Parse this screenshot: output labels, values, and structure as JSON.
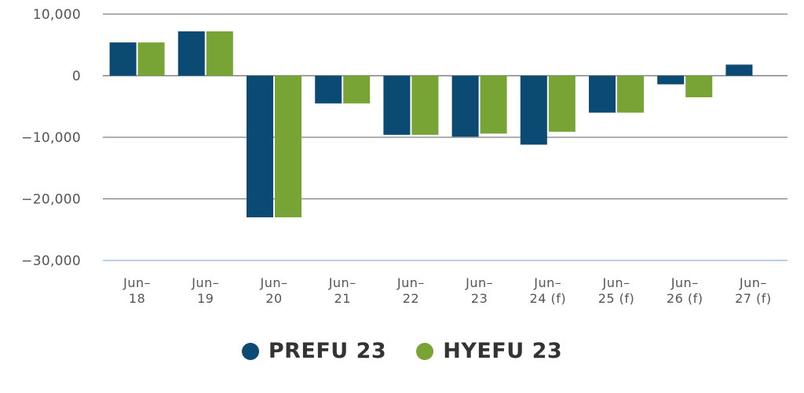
{
  "chart_data": {
    "type": "bar",
    "categories": [
      [
        "Jun–",
        "18"
      ],
      [
        "Jun–",
        "19"
      ],
      [
        "Jun–",
        "20"
      ],
      [
        "Jun–",
        "21"
      ],
      [
        "Jun–",
        "22"
      ],
      [
        "Jun–",
        "23"
      ],
      [
        "Jun–",
        "24 (f)"
      ],
      [
        "Jun–",
        "25 (f)"
      ],
      [
        "Jun–",
        "26 (f)"
      ],
      [
        "Jun–",
        "27 (f)"
      ]
    ],
    "series": [
      {
        "name": "PREFU 23",
        "color": "#0a4a73",
        "values": [
          5400,
          7200,
          -23000,
          -4500,
          -9600,
          -9900,
          -11200,
          -6000,
          -1400,
          1800
        ]
      },
      {
        "name": "HYEFU 23",
        "color": "#77a434",
        "values": [
          5400,
          7200,
          -23000,
          -4500,
          -9600,
          -9400,
          -9100,
          -6000,
          -3500,
          null
        ]
      }
    ],
    "ylim": [
      -30000,
      10000
    ],
    "yticks": [
      10000,
      0,
      -10000,
      -20000,
      -30000
    ],
    "ytick_labels": [
      "10,000",
      "0",
      "−10,000",
      "−20,000",
      "−30,000"
    ],
    "grid": true,
    "legend_position": "bottom"
  }
}
